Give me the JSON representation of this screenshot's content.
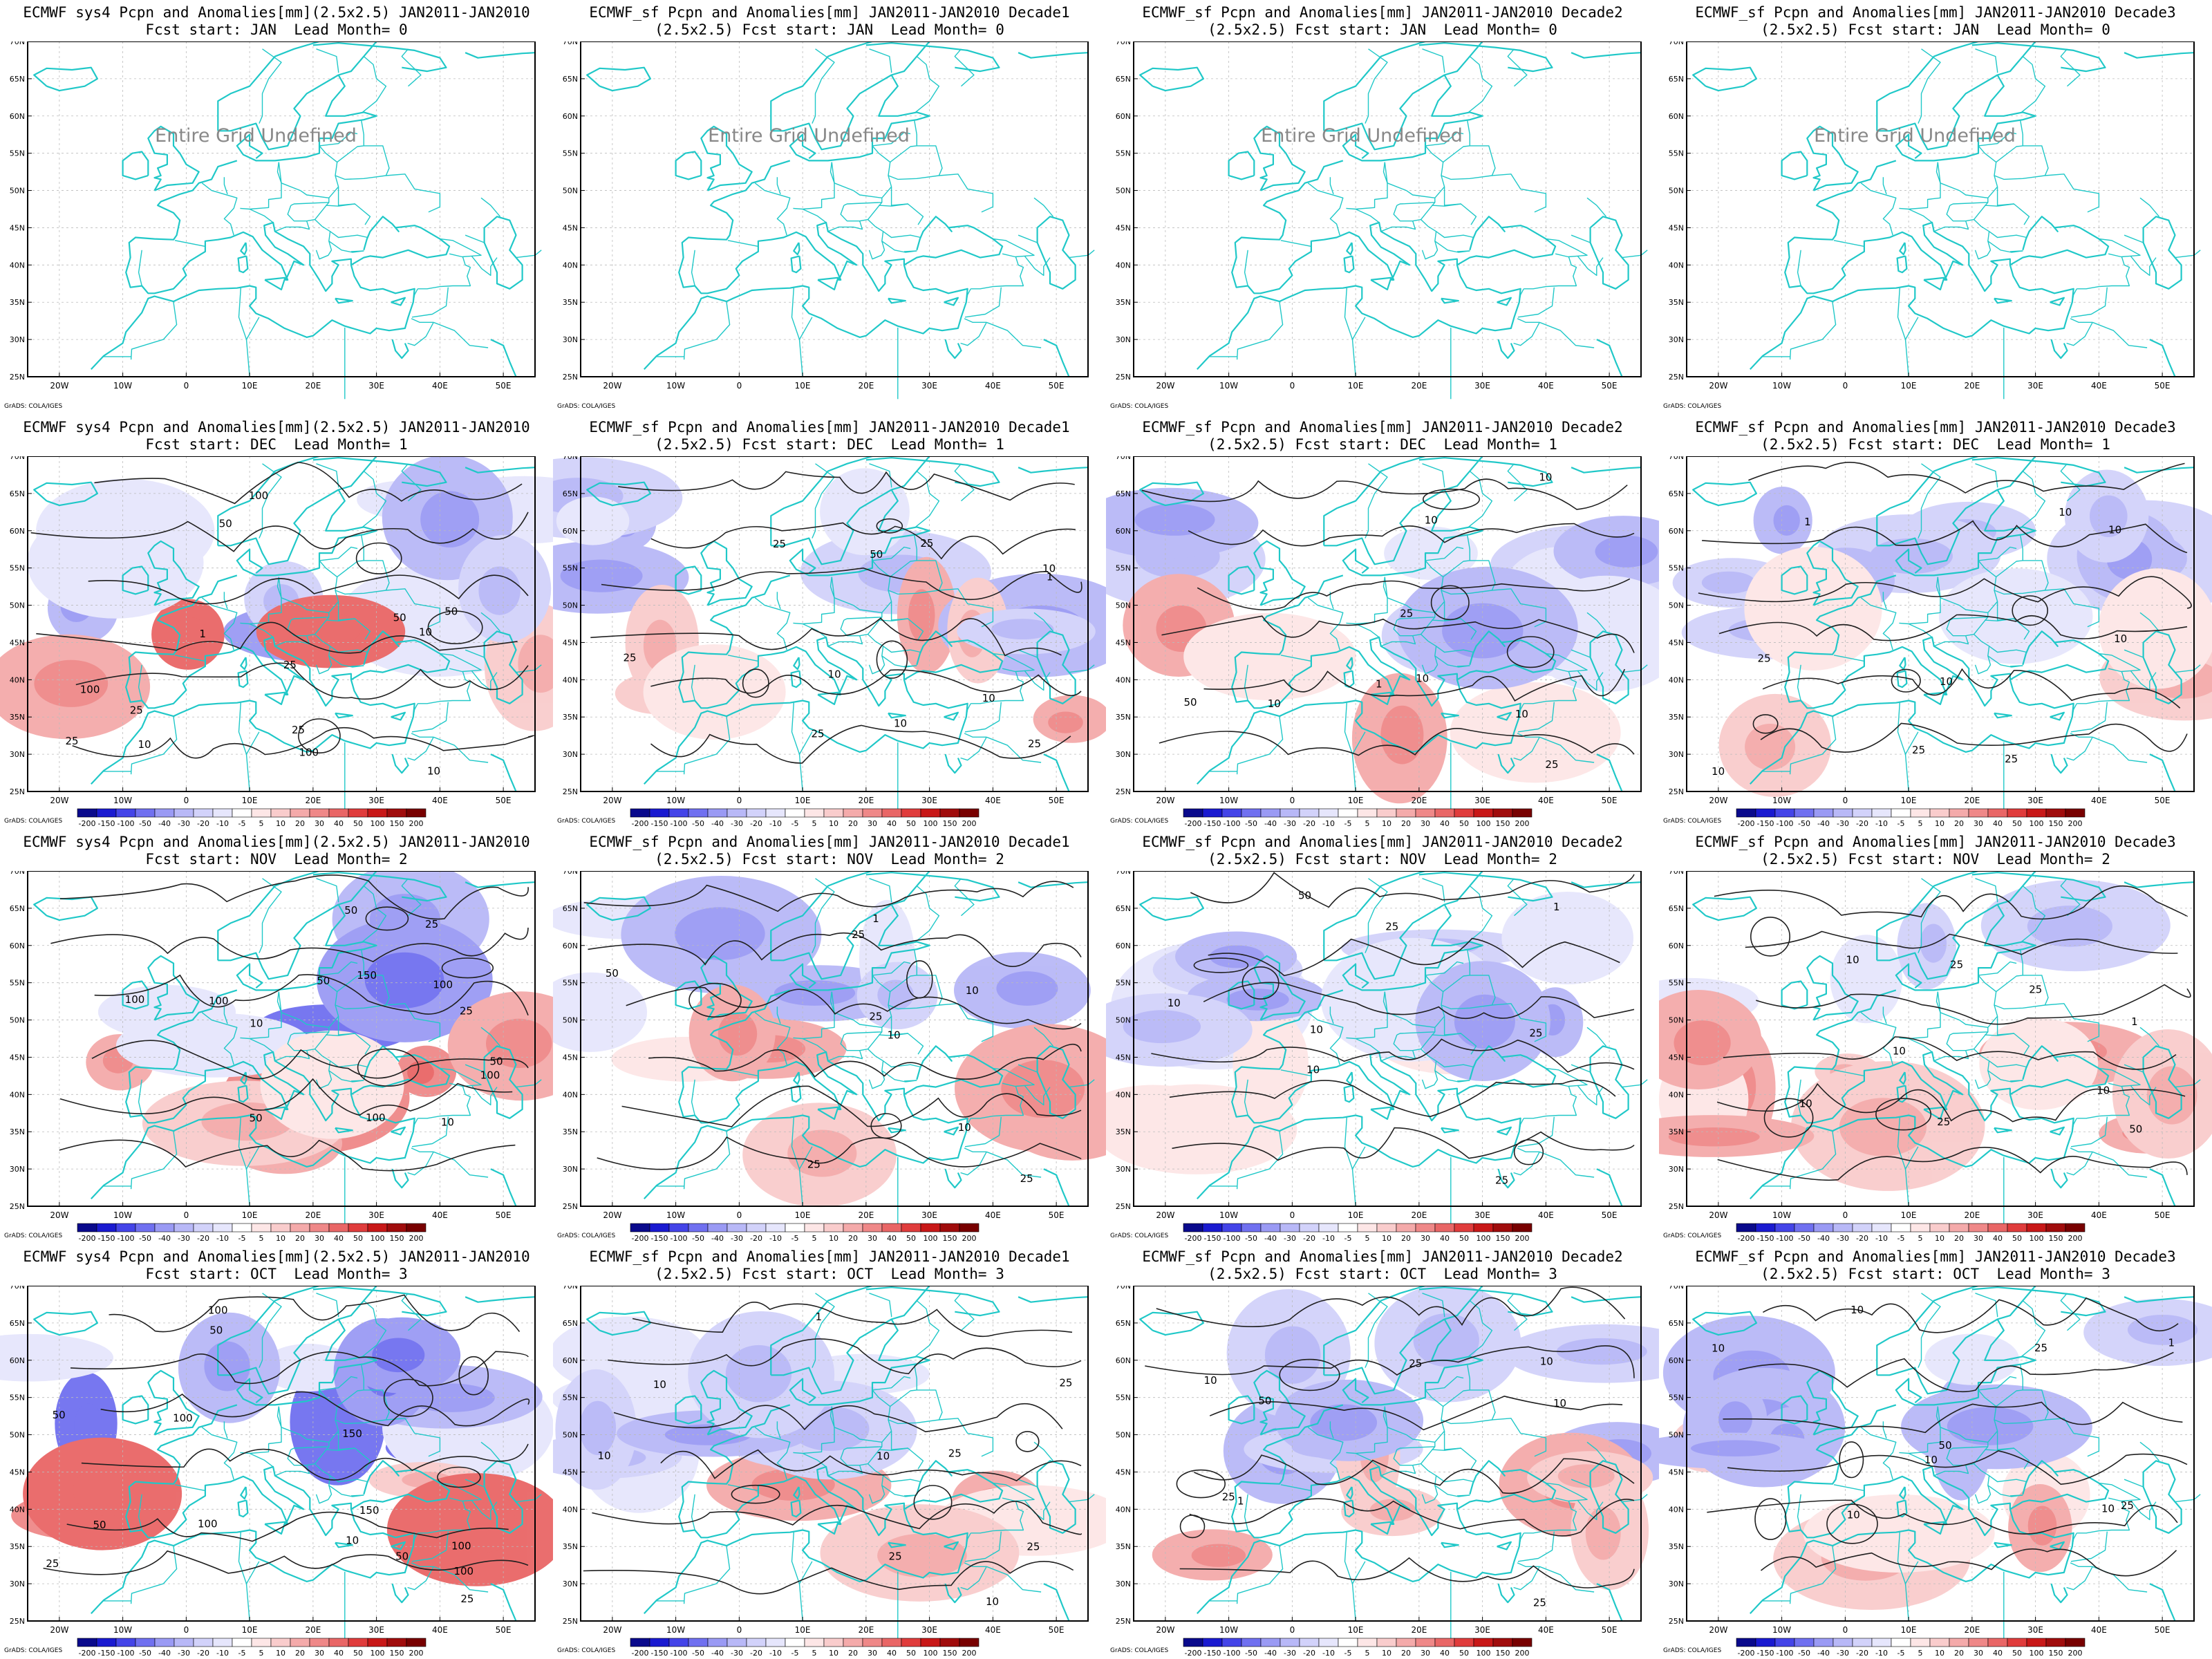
{
  "figure": {
    "credit": "GrADS: COLA/IGES",
    "undefined_label": "Entire Grid Undefined",
    "lat_labels": [
      "70N",
      "65N",
      "60N",
      "55N",
      "50N",
      "45N",
      "40N",
      "35N",
      "30N",
      "25N"
    ],
    "lon_labels": [
      "20W",
      "10W",
      "0",
      "10E",
      "20E",
      "30E",
      "40E",
      "50E"
    ],
    "colorbar_labels": [
      "-200",
      "-150",
      "-100",
      "-50",
      "-40",
      "-30",
      "-20",
      "-10",
      "-5",
      "5",
      "10",
      "20",
      "30",
      "40",
      "50",
      "100",
      "150",
      "200"
    ],
    "colorbar_colors": [
      "#0a0a8c",
      "#1a1ad0",
      "#4444e8",
      "#7070f0",
      "#9a9af4",
      "#b8b8f7",
      "#d2d2fa",
      "#e6e6fc",
      "#ffffff",
      "#fde6e6",
      "#f9cccc",
      "#f4aaaa",
      "#ef8888",
      "#e96666",
      "#e03c3c",
      "#c81818",
      "#a00c0c",
      "#780000"
    ],
    "coast_color": "#20c8c8"
  },
  "panels": [
    {
      "id": "sys4-jan",
      "row": 0,
      "col": 0,
      "title_lines": [
        "ECMWF sys4 Pcpn and Anomalies[mm](2.5x2.5) JAN2011-JAN2010",
        "Fcst start: JAN  Lead Month= 0"
      ],
      "undefined": true
    },
    {
      "id": "sf-jan-d1",
      "row": 0,
      "col": 1,
      "title_lines": [
        "ECMWF_sf Pcpn and Anomalies[mm] JAN2011-JAN2010 Decade1",
        "(2.5x2.5) Fcst start: JAN  Lead Month= 0"
      ],
      "undefined": true
    },
    {
      "id": "sf-jan-d2",
      "row": 0,
      "col": 2,
      "title_lines": [
        "ECMWF_sf Pcpn and Anomalies[mm] JAN2011-JAN2010 Decade2",
        "(2.5x2.5) Fcst start: JAN  Lead Month= 0"
      ],
      "undefined": true
    },
    {
      "id": "sf-jan-d3",
      "row": 0,
      "col": 3,
      "title_lines": [
        "ECMWF_sf Pcpn and Anomalies[mm] JAN2011-JAN2010 Decade3",
        "(2.5x2.5) Fcst start: JAN  Lead Month= 0"
      ],
      "undefined": true
    },
    {
      "id": "sys4-dec",
      "row": 1,
      "col": 0,
      "title_lines": [
        "ECMWF sys4 Pcpn and Anomalies[mm](2.5x2.5) JAN2011-JAN2010",
        "Fcst start: DEC  Lead Month= 1"
      ],
      "undefined": false,
      "contour_labels": [
        "100",
        "25",
        "100",
        "50",
        "10",
        "25",
        "50",
        "100",
        "10",
        "1",
        "25",
        "50",
        "25",
        "10"
      ]
    },
    {
      "id": "sf-dec-d1",
      "row": 1,
      "col": 1,
      "title_lines": [
        "ECMWF_sf Pcpn and Anomalies[mm] JAN2011-JAN2010 Decade1",
        "(2.5x2.5) Fcst start: DEC  Lead Month= 1"
      ],
      "undefined": false,
      "contour_labels": [
        "25",
        "25",
        "50",
        "25",
        "10",
        "25",
        "10",
        "25",
        "10",
        "1",
        "10"
      ]
    },
    {
      "id": "sf-dec-d2",
      "row": 1,
      "col": 2,
      "title_lines": [
        "ECMWF_sf Pcpn and Anomalies[mm] JAN2011-JAN2010 Decade2",
        "(2.5x2.5) Fcst start: DEC  Lead Month= 1"
      ],
      "undefined": false,
      "contour_labels": [
        "10",
        "50",
        "10",
        "25",
        "10",
        "25",
        "10",
        "1",
        "10"
      ]
    },
    {
      "id": "sf-dec-d3",
      "row": 1,
      "col": 3,
      "title_lines": [
        "ECMWF_sf Pcpn and Anomalies[mm] JAN2011-JAN2010 Decade3",
        "(2.5x2.5) Fcst start: DEC  Lead Month= 1"
      ],
      "undefined": false,
      "contour_labels": [
        "10",
        "10",
        "25",
        "25",
        "10",
        "10",
        "25",
        "1",
        "10"
      ]
    },
    {
      "id": "sys4-nov",
      "row": 2,
      "col": 0,
      "title_lines": [
        "ECMWF sys4 Pcpn and Anomalies[mm](2.5x2.5) JAN2011-JAN2010",
        "Fcst start: NOV  Lead Month= 2"
      ],
      "undefined": false,
      "contour_labels": [
        "100",
        "100",
        "150",
        "50",
        "100",
        "50",
        "100",
        "50",
        "25",
        "10",
        "50",
        "25",
        "10",
        "100"
      ]
    },
    {
      "id": "sf-nov-d1",
      "row": 2,
      "col": 1,
      "title_lines": [
        "ECMWF_sf Pcpn and Anomalies[mm] JAN2011-JAN2010 Decade1",
        "(2.5x2.5) Fcst start: NOV  Lead Month= 2"
      ],
      "undefined": false,
      "contour_labels": [
        "25",
        "50",
        "25",
        "25",
        "10",
        "25",
        "10",
        "10",
        "1"
      ]
    },
    {
      "id": "sf-nov-d2",
      "row": 2,
      "col": 2,
      "title_lines": [
        "ECMWF_sf Pcpn and Anomalies[mm] JAN2011-JAN2010 Decade2",
        "(2.5x2.5) Fcst start: NOV  Lead Month= 2"
      ],
      "undefined": false,
      "contour_labels": [
        "50",
        "25",
        "25",
        "10",
        "25",
        "10",
        "1",
        "10"
      ]
    },
    {
      "id": "sf-nov-d3",
      "row": 2,
      "col": 3,
      "title_lines": [
        "ECMWF_sf Pcpn and Anomalies[mm] JAN2011-JAN2010 Decade3",
        "(2.5x2.5) Fcst start: NOV  Lead Month= 2"
      ],
      "undefined": false,
      "contour_labels": [
        "25",
        "50",
        "10",
        "25",
        "10",
        "25",
        "10",
        "1",
        "10"
      ]
    },
    {
      "id": "sys4-oct",
      "row": 3,
      "col": 0,
      "title_lines": [
        "ECMWF sys4 Pcpn and Anomalies[mm](2.5x2.5) JAN2011-JAN2010",
        "Fcst start: OCT  Lead Month= 3"
      ],
      "undefined": false,
      "contour_labels": [
        "100",
        "150",
        "150",
        "100",
        "100",
        "50",
        "25",
        "100",
        "50",
        "100",
        "50",
        "25",
        "10",
        "50"
      ]
    },
    {
      "id": "sf-oct-d1",
      "row": 3,
      "col": 1,
      "title_lines": [
        "ECMWF_sf Pcpn and Anomalies[mm] JAN2011-JAN2010 Decade1",
        "(2.5x2.5) Fcst start: OCT  Lead Month= 3"
      ],
      "undefined": false,
      "contour_labels": [
        "25",
        "25",
        "10",
        "25",
        "10",
        "25",
        "10",
        "1",
        "10"
      ]
    },
    {
      "id": "sf-oct-d2",
      "row": 3,
      "col": 2,
      "title_lines": [
        "ECMWF_sf Pcpn and Anomalies[mm] JAN2011-JAN2010 Decade2",
        "(2.5x2.5) Fcst start: OCT  Lead Month= 3"
      ],
      "undefined": false,
      "contour_labels": [
        "50",
        "25",
        "10",
        "25",
        "25",
        "10",
        "1",
        "10"
      ]
    },
    {
      "id": "sf-oct-d3",
      "row": 3,
      "col": 3,
      "title_lines": [
        "ECMWF_sf Pcpn and Anomalies[mm] JAN2011-JAN2010 Decade3",
        "(2.5x2.5) Fcst start: OCT  Lead Month= 3"
      ],
      "undefined": false,
      "contour_labels": [
        "50",
        "10",
        "10",
        "25",
        "10",
        "25",
        "10",
        "1",
        "10"
      ]
    }
  ]
}
